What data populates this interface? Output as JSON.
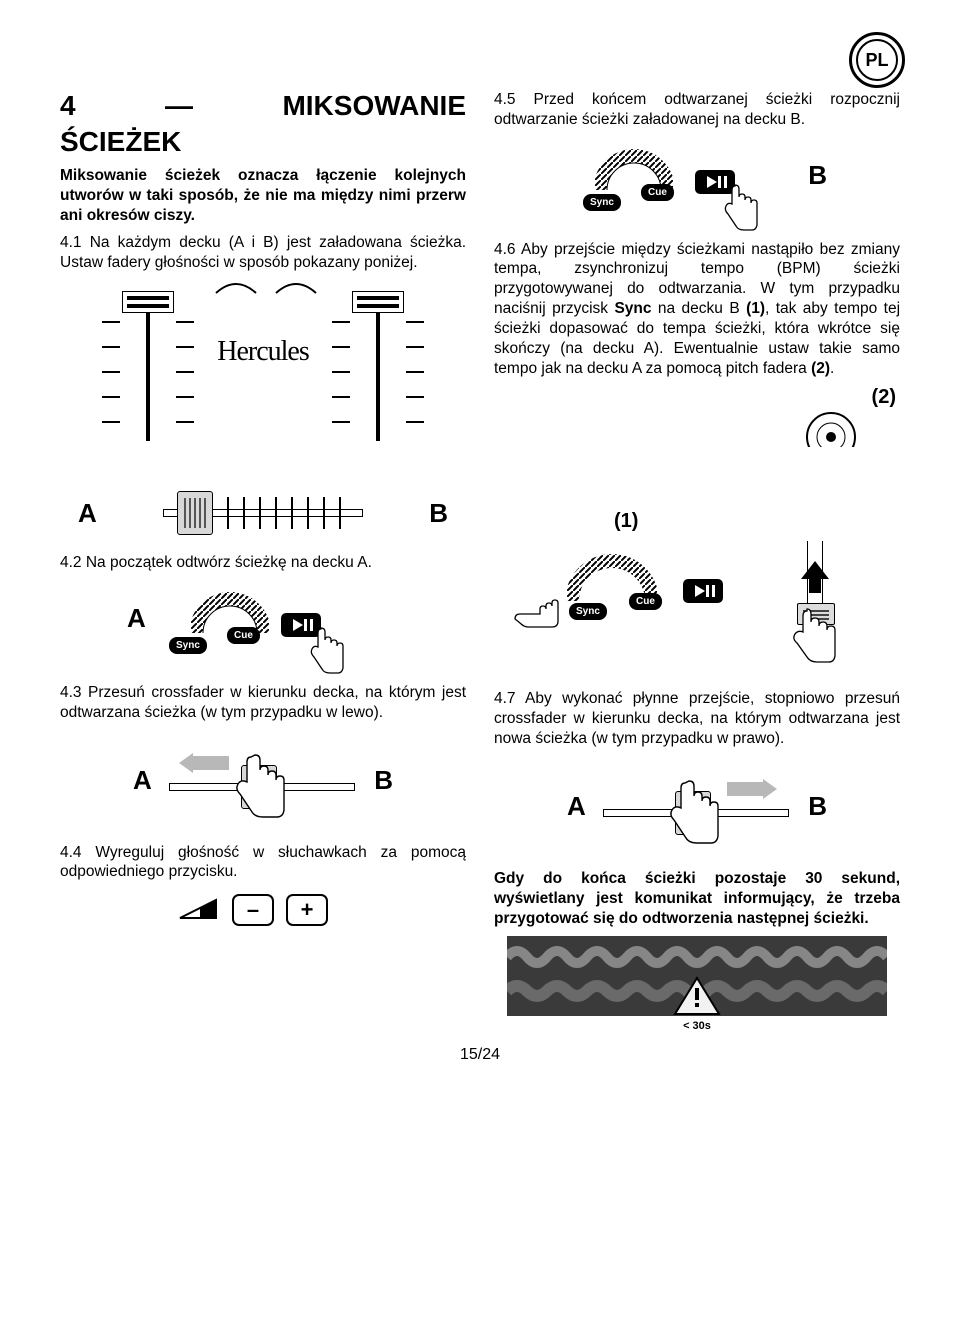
{
  "lang_tag": "PL",
  "page_number": "15/24",
  "section": {
    "num": "4",
    "dash": "—",
    "title": "MIKSOWANIE",
    "subtitle": "ŚCIEŻEK"
  },
  "left": {
    "intro": "Miksowanie ścieżek oznacza łączenie kolejnych utworów w taki sposób, że nie ma między nimi przerw ani okresów ciszy.",
    "p41": "4.1 Na każdym decku (A i B) jest załadowana ścieżka. Ustaw fadery głośności w sposób pokazany poniżej.",
    "logo": "Hercules",
    "labelA": "A",
    "labelB": "B",
    "p42": "4.2 Na początek odtwórz ścieżkę na decku A.",
    "p43": "4.3 Przesuń crossfader w kierunku decka, na którym jest odtwarzana ścieżka (w tym przypadku w lewo).",
    "p44": "4.4 Wyreguluj głośność w słuchawkach za pomocą odpowiedniego przycisku.",
    "minus": "–",
    "plus": "+"
  },
  "right": {
    "p45": "4.5 Przed końcem odtwarzanej ścieżki rozpocznij odtwarzanie ścieżki załadowanej na decku B.",
    "p46": "4.6 Aby przejście między ścieżkami nastąpiło bez zmiany tempa, zsynchronizuj tempo (BPM) ścieżki przygotowywanej do odtwarzania. W tym przypadku naciśnij przycisk <b>Sync</b> na decku B <b>(1)</b>, tak aby tempo tej ścieżki dopasować do tempa ścieżki, która wkrótce się skończy (na decku A). Ewentualnie ustaw takie samo tempo jak na decku A za pomocą pitch fadera <b>(2)</b>.",
    "l1": "(1)",
    "l2": "(2)",
    "p47": "4.7 Aby wykonać płynne przejście, stopniowo przesuń crossfader w kierunku decka, na którym odtwarzana jest nowa ścieżka (w tym przypadku w prawo).",
    "note": "Gdy do końca ścieżki pozostaje 30 sekund, wyświetlany jest komunikat informujący, że trzeba przygotować się do odtworzenia następnej ścieżki.",
    "warn": "< 30s",
    "sync": "Sync",
    "cue": "Cue"
  },
  "colors": {
    "gray_arrow": "#b8b8b8",
    "waveform_bg": "#3a3a3a",
    "waveform_a": "#888888",
    "waveform_b": "#666666",
    "warn_fill": "#f2f2f2"
  }
}
